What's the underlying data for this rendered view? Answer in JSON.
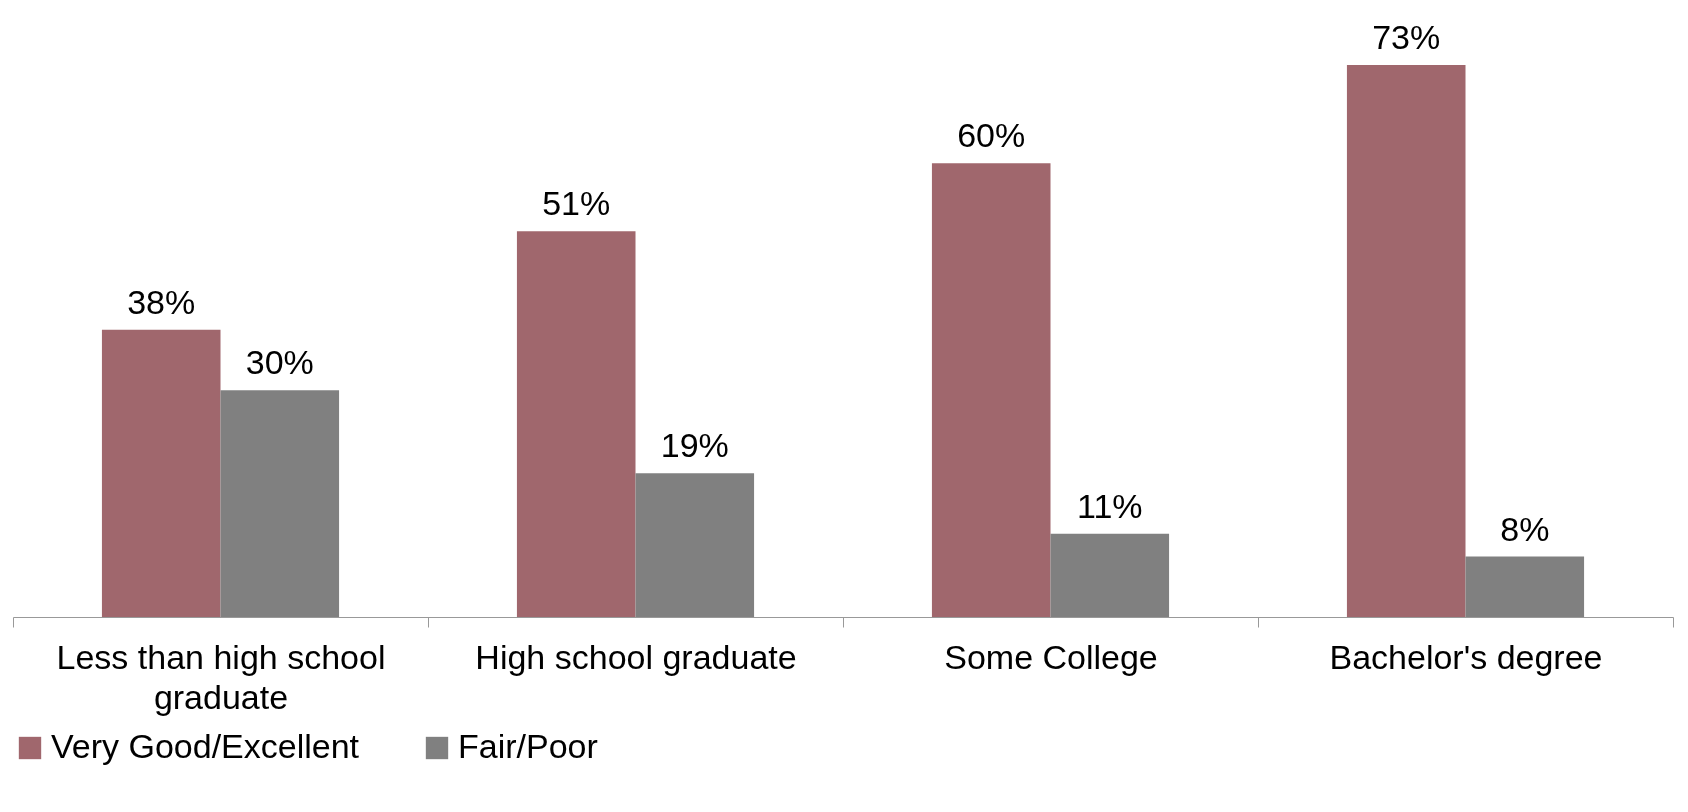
{
  "chart_data": {
    "type": "bar",
    "categories": [
      "Less than high school graduate",
      "High school graduate",
      "Some College",
      "Bachelor's degree"
    ],
    "series": [
      {
        "name": "Very Good/Excellent",
        "color": "#a0676d",
        "values": [
          38,
          51,
          60,
          73
        ],
        "value_labels": [
          "38%",
          "51%",
          "60%",
          "73%"
        ]
      },
      {
        "name": "Fair/Poor",
        "color": "#808080",
        "values": [
          30,
          19,
          11,
          8
        ],
        "value_labels": [
          "30%",
          "19%",
          "11%",
          "8%"
        ]
      }
    ],
    "legend": "bottom",
    "grid": false,
    "tick_labels": "x"
  }
}
